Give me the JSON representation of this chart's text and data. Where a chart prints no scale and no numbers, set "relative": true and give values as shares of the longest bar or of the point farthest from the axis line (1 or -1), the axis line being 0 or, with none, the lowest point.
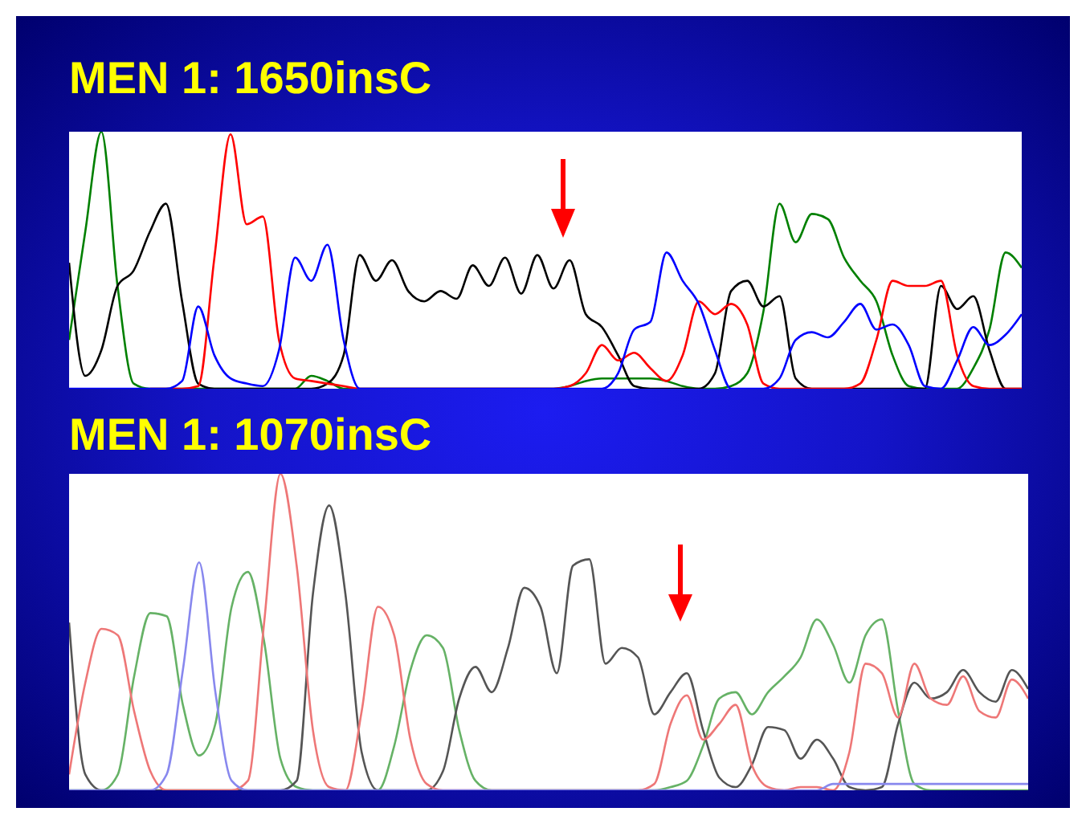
{
  "chart_data": [
    {
      "type": "line",
      "title": "MEN 1: 1650insC",
      "relative": true,
      "categories": [
        null,
        null,
        null,
        null,
        null,
        null,
        null,
        null,
        null,
        null,
        null,
        null,
        null,
        null,
        null,
        null,
        null,
        null,
        null,
        null,
        null,
        null,
        null,
        null,
        null,
        null,
        null,
        null,
        null,
        null,
        null,
        null,
        null,
        null,
        null,
        null,
        null,
        null,
        null,
        null,
        null,
        null,
        null,
        null,
        null,
        null,
        null,
        null,
        null,
        null,
        null,
        null,
        null,
        null,
        null,
        null,
        null,
        null,
        null,
        null
      ],
      "series": [
        {
          "color": "#008000",
          "values": [
            0.19,
            0.61,
            1,
            0.4,
            0.02,
            0,
            0,
            0,
            0,
            0,
            0,
            0,
            0,
            0,
            0,
            0.05,
            0.03,
            0,
            0,
            0,
            0,
            0,
            0,
            0,
            0,
            0,
            0,
            0,
            0,
            0,
            0,
            0.01,
            0.03,
            0.04,
            0.04,
            0.04,
            0.04,
            0.03,
            0.01,
            0,
            0,
            0.01,
            0.06,
            0.3,
            0.72,
            0.57,
            0.68,
            0.66,
            0.51,
            0.42,
            0.34,
            0.13,
            0.01,
            0,
            0,
            0,
            0.08,
            0.23,
            0.53,
            0.47
          ]
        },
        {
          "color": "#000000",
          "values": [
            0.49,
            0.05,
            0.15,
            0.4,
            0.46,
            0.61,
            0.72,
            0.34,
            0.02,
            0,
            0,
            0,
            0,
            0,
            0,
            0,
            0.02,
            0.13,
            0.52,
            0.42,
            0.5,
            0.38,
            0.34,
            0.38,
            0.35,
            0.48,
            0.4,
            0.51,
            0.37,
            0.52,
            0.39,
            0.5,
            0.29,
            0.24,
            0.13,
            0.01,
            0,
            0,
            0,
            0,
            0.06,
            0.38,
            0.42,
            0.32,
            0.36,
            0.04,
            0,
            0,
            0,
            0,
            0,
            0,
            0,
            0,
            0.4,
            0.31,
            0.36,
            0.15,
            0,
            0
          ]
        },
        {
          "color": "#ff0000",
          "values": [
            null,
            null,
            null,
            null,
            null,
            0,
            0,
            0,
            0.01,
            0.51,
            0.99,
            0.64,
            0.67,
            0.19,
            0.04,
            0.03,
            0.02,
            0.01,
            0,
            0,
            0,
            0,
            0,
            0,
            0,
            0,
            0,
            0,
            0,
            0,
            0,
            0.01,
            0.06,
            0.17,
            0.11,
            0.14,
            0.08,
            0.03,
            0.13,
            0.34,
            0.29,
            0.33,
            0.25,
            0.02,
            0,
            0,
            0,
            0,
            0,
            0.02,
            0.19,
            0.42,
            0.4,
            0.4,
            0.42,
            0.13,
            0.01,
            0,
            0,
            0
          ]
        },
        {
          "color": "#0000ff",
          "values": [
            0,
            0,
            0,
            0,
            0,
            0,
            0,
            0.03,
            0.32,
            0.13,
            0.04,
            0.02,
            0.01,
            0.15,
            0.51,
            0.42,
            0.56,
            0.19,
            0,
            0,
            0,
            0,
            0,
            0,
            0,
            0,
            0,
            0,
            0,
            0,
            0,
            0,
            0,
            0,
            0.06,
            0.23,
            0.26,
            0.53,
            0.42,
            0.33,
            0.15,
            0,
            0,
            0,
            0.04,
            0.19,
            0.22,
            0.2,
            0.26,
            0.33,
            0.23,
            0.25,
            0.17,
            0.01,
            0,
            0.11,
            0.24,
            0.17,
            0.21,
            0.29
          ]
        }
      ]
    },
    {
      "type": "line",
      "title": "MEN 1: 1070insC",
      "relative": true,
      "categories": [
        null,
        null,
        null,
        null,
        null,
        null,
        null,
        null,
        null,
        null,
        null,
        null,
        null,
        null,
        null,
        null,
        null,
        null,
        null,
        null,
        null,
        null,
        null,
        null,
        null,
        null,
        null,
        null,
        null,
        null,
        null,
        null,
        null,
        null,
        null,
        null,
        null,
        null,
        null,
        null,
        null,
        null,
        null,
        null,
        null,
        null,
        null,
        null,
        null,
        null,
        null,
        null,
        null,
        null,
        null,
        null,
        null,
        null,
        null,
        null
      ],
      "series": [
        {
          "color": "#66b266",
          "values": [
            0,
            0,
            0,
            0.05,
            0.36,
            0.56,
            0.55,
            0.27,
            0.11,
            0.21,
            0.58,
            0.69,
            0.47,
            0.1,
            0.01,
            0,
            0,
            0,
            0,
            0,
            0.14,
            0.38,
            0.49,
            0.45,
            0.19,
            0.03,
            0,
            0,
            0,
            0,
            0,
            0,
            0,
            0,
            0,
            0,
            0,
            0.01,
            0.03,
            0.14,
            0.29,
            0.31,
            0.24,
            0.31,
            0.36,
            0.42,
            0.54,
            0.46,
            0.34,
            0.49,
            0.54,
            0.25,
            0.02,
            0,
            0,
            0,
            0,
            0,
            0,
            0
          ]
        },
        {
          "color": "#555555",
          "values": [
            0.53,
            0.05,
            0,
            0,
            0,
            0,
            0,
            0,
            0,
            0,
            0,
            0,
            0,
            0,
            0.03,
            0.62,
            0.9,
            0.62,
            0.12,
            0,
            0,
            0,
            0,
            0.06,
            0.29,
            0.39,
            0.31,
            0.45,
            0.64,
            0.58,
            0.37,
            0.71,
            0.73,
            0.4,
            0.45,
            0.42,
            0.24,
            0.31,
            0.37,
            0.19,
            0.04,
            0.01,
            0.08,
            0.2,
            0.19,
            0.1,
            0.16,
            0.1,
            0.01,
            0,
            0.01,
            0.21,
            0.34,
            0.29,
            0.31,
            0.38,
            0.31,
            0.28,
            0.38,
            0.32
          ]
        },
        {
          "color": "#ee7777",
          "values": [
            0.05,
            0.34,
            0.51,
            0.49,
            0.25,
            0.06,
            0,
            0,
            0,
            0,
            0,
            0.03,
            0.53,
            1,
            0.71,
            0.19,
            0.01,
            0,
            0.25,
            0.58,
            0.49,
            0.16,
            0.02,
            0,
            0,
            0,
            0,
            0,
            0,
            0,
            0,
            0,
            0,
            0,
            0,
            0,
            0.02,
            0.21,
            0.3,
            0.16,
            0.21,
            0.27,
            0.08,
            0.01,
            0,
            0.01,
            0.01,
            0,
            0.12,
            0.4,
            0.37,
            0.23,
            0.4,
            0.29,
            0.27,
            0.36,
            0.25,
            0.23,
            0.35,
            0.29
          ]
        },
        {
          "color": "#8888ee",
          "values": [
            0,
            0,
            0,
            0,
            0,
            0,
            0.05,
            0.38,
            0.72,
            0.31,
            0.03,
            0,
            0,
            0,
            0,
            0,
            0,
            0,
            0,
            0,
            0,
            0,
            0,
            0,
            0,
            0,
            0,
            0,
            0,
            0,
            0,
            0,
            0,
            0,
            0,
            0,
            0,
            0,
            0,
            0,
            0,
            0,
            0,
            0,
            0,
            0,
            0,
            0.02,
            0.02,
            0.02,
            0.02,
            0.02,
            0.02,
            0.02,
            0.02,
            0.02,
            0.02,
            0.02,
            0.02,
            0.02
          ]
        }
      ]
    }
  ]
}
